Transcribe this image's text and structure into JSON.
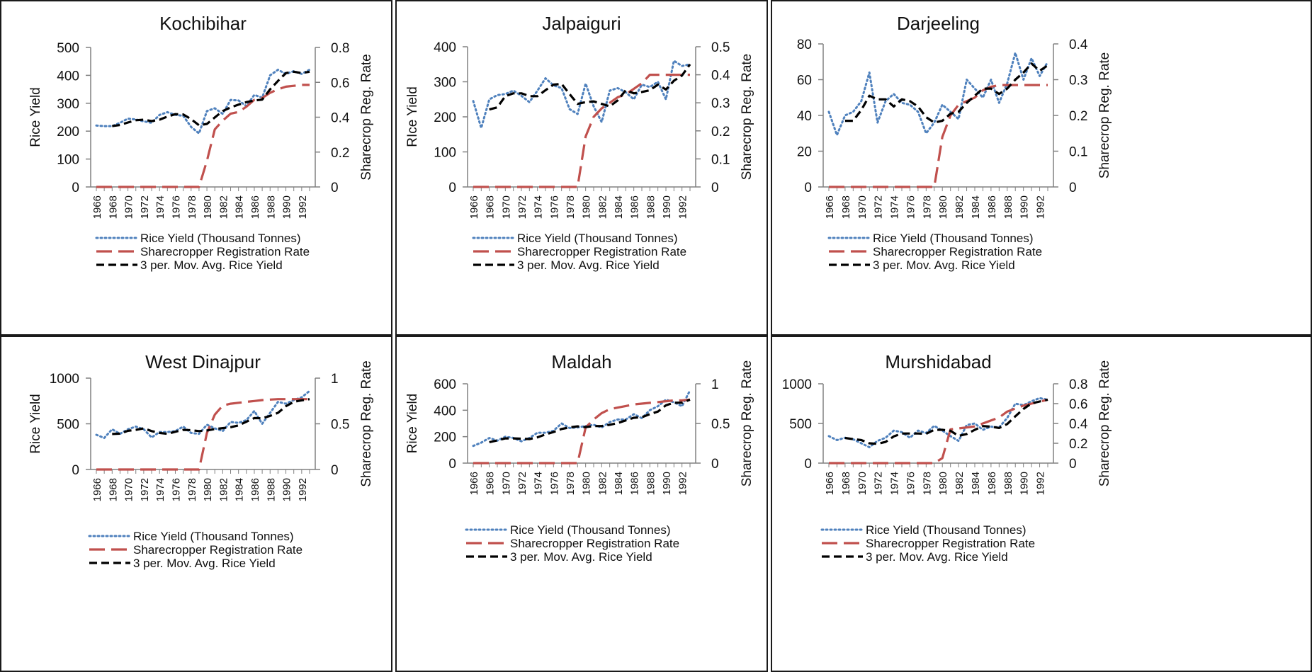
{
  "colors": {
    "rice_yield": "#4f81bd",
    "registration_rate": "#c0504d",
    "moving_avg": "#000000",
    "axis": "#808080"
  },
  "legend": [
    "Rice Yield (Thousand Tonnes)",
    "Sharecropper Registration Rate",
    "3 per. Mov. Avg. Rice Yield"
  ],
  "chart_data": [
    {
      "type": "line",
      "title": "Kochibihar",
      "ylabel": "Rice Yield",
      "y2label": "Sharecrop Reg. Rate",
      "ylim": [
        0,
        500
      ],
      "yticks": [
        0,
        100,
        200,
        300,
        400,
        500
      ],
      "y2lim": [
        0,
        0.8
      ],
      "y2ticks": [
        0,
        0.2,
        0.4,
        0.6,
        0.8
      ],
      "y2ticklabels": [
        "0",
        "0.2",
        "0.4",
        "0.6",
        "0.8"
      ],
      "xticks": [
        "1966",
        "1968",
        "1970",
        "1972",
        "1974",
        "1976",
        "1978",
        "1980",
        "1982",
        "1984",
        "1986",
        "1988",
        "1990",
        "1992"
      ],
      "x": [
        1966,
        1967,
        1968,
        1969,
        1970,
        1971,
        1972,
        1973,
        1974,
        1975,
        1976,
        1977,
        1978,
        1979,
        1980,
        1981,
        1982,
        1983,
        1984,
        1985,
        1986,
        1987,
        1988,
        1989,
        1990,
        1991,
        1992,
        1993
      ],
      "series": [
        {
          "name": "Rice Yield (Thousand Tonnes)",
          "axis": "left",
          "values": [
            220,
            218,
            218,
            230,
            245,
            242,
            235,
            230,
            258,
            268,
            258,
            255,
            215,
            192,
            272,
            282,
            262,
            312,
            310,
            290,
            330,
            320,
            400,
            420,
            405,
            415,
            405,
            420
          ]
        },
        {
          "name": "Sharecropper Registration Rate",
          "axis": "right",
          "values": [
            0,
            0,
            0,
            0,
            0,
            0,
            0,
            0,
            0,
            0,
            0,
            0,
            0,
            0,
            0.15,
            0.33,
            0.38,
            0.42,
            0.43,
            0.46,
            0.5,
            0.51,
            0.54,
            0.56,
            0.575,
            0.58,
            0.585,
            0.585
          ]
        },
        {
          "name": "3 per. Mov. Avg. Rice Yield",
          "axis": "left",
          "values": [
            null,
            null,
            218,
            222,
            231,
            239,
            241,
            236,
            241,
            252,
            261,
            260,
            243,
            221,
            226,
            249,
            272,
            285,
            295,
            304,
            310,
            313,
            350,
            380,
            408,
            413,
            408,
            413
          ]
        }
      ]
    },
    {
      "type": "line",
      "title": "Jalpaiguri",
      "ylabel": "RIce Yield",
      "y2label": "Sharecrop Reg. Rate",
      "ylim": [
        0,
        400
      ],
      "yticks": [
        0,
        100,
        200,
        300,
        400
      ],
      "y2lim": [
        0,
        0.5
      ],
      "y2ticks": [
        0,
        0.1,
        0.2,
        0.3,
        0.4,
        0.5
      ],
      "y2ticklabels": [
        "0",
        "0.1",
        "0.2",
        "0.3",
        "0.4",
        "0.5"
      ],
      "xticks": [
        "1966",
        "1968",
        "1970",
        "1972",
        "1974",
        "1976",
        "1978",
        "1980",
        "1982",
        "1984",
        "1986",
        "1988",
        "1990",
        "1992"
      ],
      "x": [
        1966,
        1967,
        1968,
        1969,
        1970,
        1971,
        1972,
        1973,
        1974,
        1975,
        1976,
        1977,
        1978,
        1979,
        1980,
        1981,
        1982,
        1983,
        1984,
        1985,
        1986,
        1987,
        1988,
        1989,
        1990,
        1991,
        1992,
        1993
      ],
      "series": [
        {
          "name": "Rice Yield (Thousand Tonnes)",
          "axis": "left",
          "values": [
            245,
            168,
            250,
            262,
            265,
            275,
            260,
            242,
            275,
            310,
            290,
            282,
            222,
            208,
            295,
            230,
            185,
            275,
            282,
            270,
            250,
            292,
            285,
            300,
            250,
            360,
            345,
            350
          ]
        },
        {
          "name": "Sharecropper Registration Rate",
          "axis": "right",
          "values": [
            0,
            0,
            0,
            0,
            0,
            0,
            0,
            0,
            0,
            0,
            0,
            0,
            0,
            0,
            0.18,
            0.25,
            0.28,
            0.3,
            0.32,
            0.33,
            0.35,
            0.37,
            0.4,
            0.4,
            0.4,
            0.4,
            0.4,
            0.4
          ]
        },
        {
          "name": "3 per. Mov. Avg. Rice Yield",
          "axis": "left",
          "values": [
            null,
            null,
            221,
            227,
            259,
            267,
            267,
            259,
            259,
            276,
            292,
            294,
            265,
            237,
            242,
            244,
            237,
            230,
            247,
            276,
            267,
            271,
            276,
            292,
            278,
            303,
            318,
            350
          ]
        }
      ]
    },
    {
      "type": "line",
      "title": "Darjeeling",
      "ylabel": "Rice Yield",
      "y2label": "Sharecrop Reg. Rate",
      "ylim": [
        0,
        80
      ],
      "yticks": [
        0,
        20,
        40,
        60,
        80
      ],
      "y2lim": [
        0,
        0.4
      ],
      "y2ticks": [
        0,
        0.1,
        0.2,
        0.3,
        0.4
      ],
      "y2ticklabels": [
        "0",
        "0.1",
        "0.2",
        "0.3",
        "0.4"
      ],
      "xticks": [
        "1966",
        "1968",
        "1970",
        "1972",
        "1974",
        "1976",
        "1978",
        "1980",
        "1982",
        "1984",
        "1986",
        "1988",
        "1990",
        "1992"
      ],
      "x": [
        1966,
        1967,
        1968,
        1969,
        1970,
        1971,
        1972,
        1973,
        1974,
        1975,
        1976,
        1977,
        1978,
        1979,
        1980,
        1981,
        1982,
        1983,
        1984,
        1985,
        1986,
        1987,
        1988,
        1989,
        1990,
        1991,
        1992,
        1993
      ],
      "series": [
        {
          "name": "Rice Yield (Thousand Tonnes)",
          "axis": "left",
          "values": [
            42,
            29,
            40,
            42,
            48,
            64,
            36,
            48,
            52,
            47,
            46,
            42,
            30,
            36,
            46,
            42,
            38,
            60,
            55,
            50,
            60,
            47,
            58,
            75,
            60,
            72,
            62,
            70
          ]
        },
        {
          "name": "Sharecropper Registration Rate",
          "axis": "right",
          "values": [
            0,
            0,
            0,
            0,
            0,
            0,
            0,
            0,
            0,
            0,
            0,
            0,
            0,
            0,
            0.14,
            0.2,
            0.23,
            0.24,
            0.25,
            0.27,
            0.28,
            0.285,
            0.285,
            0.285,
            0.285,
            0.285,
            0.285,
            0.285
          ]
        },
        {
          "name": "3 per. Mov. Avg. Rice Yield",
          "axis": "left",
          "values": [
            null,
            null,
            37,
            37,
            43,
            51,
            49,
            49,
            45,
            49,
            48,
            45,
            39,
            36,
            37,
            41,
            42,
            47,
            51,
            55,
            55,
            52,
            55,
            60,
            64,
            69,
            65,
            68
          ]
        }
      ]
    },
    {
      "type": "line",
      "title": "West Dinajpur",
      "ylabel": "Rice Yield",
      "y2label": "Sharecrop Reg. Rate",
      "ylim": [
        0,
        1000
      ],
      "yticks": [
        0,
        500,
        1000
      ],
      "y2lim": [
        0,
        1
      ],
      "y2ticks": [
        0,
        0.5,
        1
      ],
      "y2ticklabels": [
        "0",
        "0.5",
        "1"
      ],
      "xticks": [
        "1966",
        "1968",
        "1970",
        "1972",
        "1974",
        "1976",
        "1978",
        "1980",
        "1982",
        "1984",
        "1986",
        "1988",
        "1990",
        "1992"
      ],
      "x": [
        1966,
        1967,
        1968,
        1969,
        1970,
        1971,
        1972,
        1973,
        1974,
        1975,
        1976,
        1977,
        1978,
        1979,
        1980,
        1981,
        1982,
        1983,
        1984,
        1985,
        1986,
        1987,
        1988,
        1989,
        1990,
        1991,
        1992,
        1993
      ],
      "series": [
        {
          "name": "Rice Yield (Thousand Tonnes)",
          "axis": "left",
          "values": [
            380,
            345,
            440,
            390,
            440,
            470,
            440,
            350,
            410,
            410,
            420,
            470,
            400,
            390,
            490,
            450,
            420,
            520,
            510,
            540,
            640,
            500,
            620,
            740,
            720,
            760,
            790,
            860
          ]
        },
        {
          "name": "Sharecropper Registration Rate",
          "axis": "right",
          "values": [
            0,
            0,
            0,
            0,
            0,
            0,
            0,
            0,
            0,
            0,
            0,
            0,
            0,
            0,
            0.4,
            0.6,
            0.7,
            0.72,
            0.73,
            0.74,
            0.75,
            0.76,
            0.765,
            0.77,
            0.77,
            0.77,
            0.77,
            0.77
          ]
        },
        {
          "name": "3 per. Mov. Avg. Rice Yield",
          "axis": "left",
          "values": [
            null,
            null,
            388,
            392,
            423,
            433,
            450,
            420,
            400,
            390,
            413,
            433,
            430,
            420,
            427,
            443,
            453,
            463,
            483,
            523,
            563,
            560,
            587,
            620,
            693,
            740,
            757,
            770
          ]
        }
      ]
    },
    {
      "type": "line",
      "title": "Maldah",
      "ylabel": "Rice Yield",
      "y2label": "Sharecrop Reg. Rate",
      "ylim": [
        0,
        600
      ],
      "yticks": [
        0,
        200,
        400,
        600
      ],
      "y2lim": [
        0,
        1
      ],
      "y2ticks": [
        0,
        0.5,
        1
      ],
      "y2ticklabels": [
        "0",
        "0.5",
        "1"
      ],
      "xticks": [
        "1966",
        "1968",
        "1970",
        "1972",
        "1974",
        "1976",
        "1978",
        "1980",
        "1982",
        "1984",
        "1986",
        "1988",
        "1990",
        "1992"
      ],
      "x": [
        1966,
        1967,
        1968,
        1969,
        1970,
        1971,
        1972,
        1973,
        1974,
        1975,
        1976,
        1977,
        1978,
        1979,
        1980,
        1981,
        1982,
        1983,
        1984,
        1985,
        1986,
        1987,
        1988,
        1989,
        1990,
        1991,
        1992,
        1993
      ],
      "series": [
        {
          "name": "Rice Yield (Thousand Tonnes)",
          "axis": "left",
          "values": [
            130,
            155,
            190,
            170,
            200,
            190,
            165,
            190,
            230,
            230,
            245,
            300,
            265,
            270,
            280,
            290,
            270,
            310,
            330,
            330,
            370,
            340,
            400,
            430,
            480,
            460,
            430,
            550
          ]
        },
        {
          "name": "Sharecropper Registration Rate",
          "axis": "right",
          "values": [
            0,
            0,
            0,
            0,
            0,
            0,
            0,
            0,
            0,
            0,
            0,
            0,
            0,
            0,
            0.45,
            0.55,
            0.63,
            0.68,
            0.7,
            0.72,
            0.74,
            0.75,
            0.76,
            0.77,
            0.78,
            0.79,
            0.79,
            0.8
          ]
        },
        {
          "name": "3 per. Mov. Avg. Rice Yield",
          "axis": "left",
          "values": [
            null,
            null,
            158,
            172,
            187,
            187,
            185,
            182,
            195,
            217,
            235,
            258,
            270,
            278,
            272,
            280,
            280,
            290,
            303,
            323,
            343,
            347,
            370,
            390,
            437,
            457,
            457,
            480
          ]
        }
      ]
    },
    {
      "type": "line",
      "title": "Murshidabad",
      "ylabel": "Rice Yield",
      "y2label": "Sharecrop Reg. Rate",
      "ylim": [
        0,
        1000
      ],
      "yticks": [
        0,
        500,
        1000
      ],
      "y2lim": [
        0,
        0.8
      ],
      "y2ticks": [
        0,
        0.2,
        0.4,
        0.6,
        0.8
      ],
      "y2ticklabels": [
        "0",
        "0.2",
        "0.4",
        "0.6",
        "0.8"
      ],
      "xticks": [
        "1966",
        "1968",
        "1970",
        "1972",
        "1974",
        "1976",
        "1978",
        "1980",
        "1982",
        "1984",
        "1986",
        "1988",
        "1990",
        "1992"
      ],
      "x": [
        1966,
        1967,
        1968,
        1969,
        1970,
        1971,
        1972,
        1973,
        1974,
        1975,
        1976,
        1977,
        1978,
        1979,
        1980,
        1981,
        1982,
        1983,
        1984,
        1985,
        1986,
        1987,
        1988,
        1989,
        1990,
        1991,
        1992,
        1993
      ],
      "series": [
        {
          "name": "Rice Yield (Thousand Tonnes)",
          "axis": "left",
          "values": [
            340,
            290,
            320,
            300,
            250,
            200,
            280,
            320,
            410,
            390,
            320,
            410,
            380,
            470,
            410,
            340,
            280,
            480,
            500,
            420,
            460,
            450,
            570,
            750,
            730,
            780,
            820,
            800
          ]
        },
        {
          "name": "Sharecropper Registration Rate",
          "axis": "right",
          "values": [
            0,
            0,
            0,
            0,
            0,
            0,
            0,
            0,
            0,
            0,
            0,
            0,
            0,
            0,
            0.05,
            0.34,
            0.35,
            0.36,
            0.37,
            0.4,
            0.43,
            0.46,
            0.52,
            0.55,
            0.58,
            0.6,
            0.62,
            0.64
          ]
        },
        {
          "name": "3 per. Mov. Avg. Rice Yield",
          "axis": "left",
          "values": [
            null,
            null,
            317,
            303,
            290,
            250,
            243,
            267,
            337,
            373,
            373,
            373,
            370,
            420,
            420,
            407,
            343,
            367,
            420,
            467,
            460,
            443,
            493,
            590,
            683,
            753,
            777,
            800
          ]
        }
      ]
    }
  ]
}
